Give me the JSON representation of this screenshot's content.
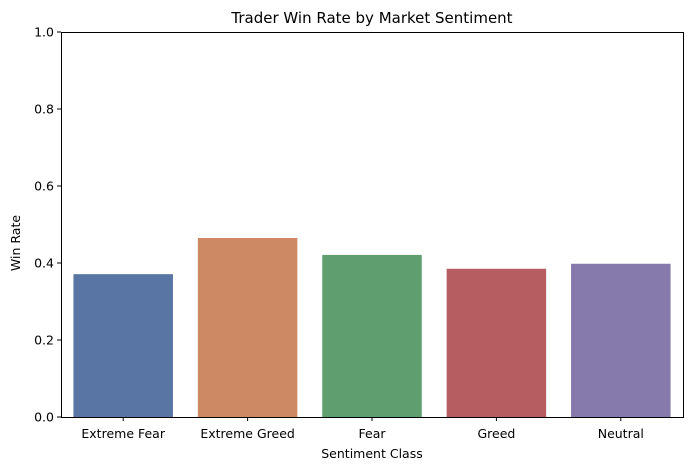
{
  "chart_data": {
    "type": "bar",
    "title": "Trader Win Rate by Market Sentiment",
    "xlabel": "Sentiment Class",
    "ylabel": "Win Rate",
    "categories": [
      "Extreme Fear",
      "Extreme Greed",
      "Fear",
      "Greed",
      "Neutral"
    ],
    "values": [
      0.371,
      0.465,
      0.421,
      0.385,
      0.398
    ],
    "colors": [
      "#5975a4",
      "#cc8963",
      "#5f9e6e",
      "#b55d60",
      "#857aab"
    ],
    "ylim": [
      0,
      1.0
    ],
    "yticks": [
      0.0,
      0.2,
      0.4,
      0.6,
      0.8,
      1.0
    ],
    "ytick_labels": [
      "0.0",
      "0.2",
      "0.4",
      "0.6",
      "0.8",
      "1.0"
    ],
    "grid": false,
    "legend": "none"
  }
}
